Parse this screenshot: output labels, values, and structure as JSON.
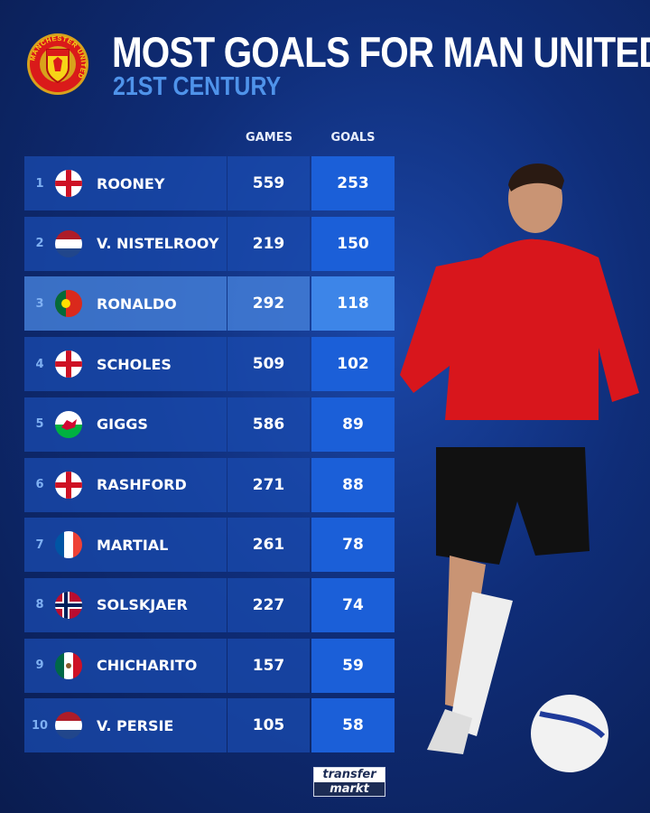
{
  "header": {
    "title": "MOST GOALS FOR MAN UNITED",
    "subtitle": "21ST CENTURY",
    "crest_text": "MANCHESTER UNITED"
  },
  "colors": {
    "background": "#0f2d78",
    "goals_cell": "#1b5fd8",
    "subtitle": "#4f93ea",
    "highlight": "#3d85e8"
  },
  "chart_data": {
    "type": "table",
    "title": "MOST GOALS FOR MAN UNITED",
    "subtitle": "21ST CENTURY",
    "columns": [
      "GAMES",
      "GOALS"
    ],
    "highlighted_rank": 3,
    "rows": [
      {
        "rank": "1",
        "flag": "england",
        "name": "ROONEY",
        "games": "559",
        "goals": "253"
      },
      {
        "rank": "2",
        "flag": "netherlands",
        "name": "V. NISTELROOY",
        "games": "219",
        "goals": "150"
      },
      {
        "rank": "3",
        "flag": "portugal",
        "name": "RONALDO",
        "games": "292",
        "goals": "118"
      },
      {
        "rank": "4",
        "flag": "england",
        "name": "SCHOLES",
        "games": "509",
        "goals": "102"
      },
      {
        "rank": "5",
        "flag": "wales",
        "name": "GIGGS",
        "games": "586",
        "goals": "89"
      },
      {
        "rank": "6",
        "flag": "england",
        "name": "RASHFORD",
        "games": "271",
        "goals": "88"
      },
      {
        "rank": "7",
        "flag": "france",
        "name": "MARTIAL",
        "games": "261",
        "goals": "78"
      },
      {
        "rank": "8",
        "flag": "norway",
        "name": "SOLSKJAER",
        "games": "227",
        "goals": "74"
      },
      {
        "rank": "9",
        "flag": "mexico",
        "name": "CHICHARITO",
        "games": "157",
        "goals": "59"
      },
      {
        "rank": "10",
        "flag": "netherlands",
        "name": "V. PERSIE",
        "games": "105",
        "goals": "58"
      }
    ]
  },
  "footer": {
    "logo_line1": "transfer",
    "logo_line2": "markt"
  }
}
